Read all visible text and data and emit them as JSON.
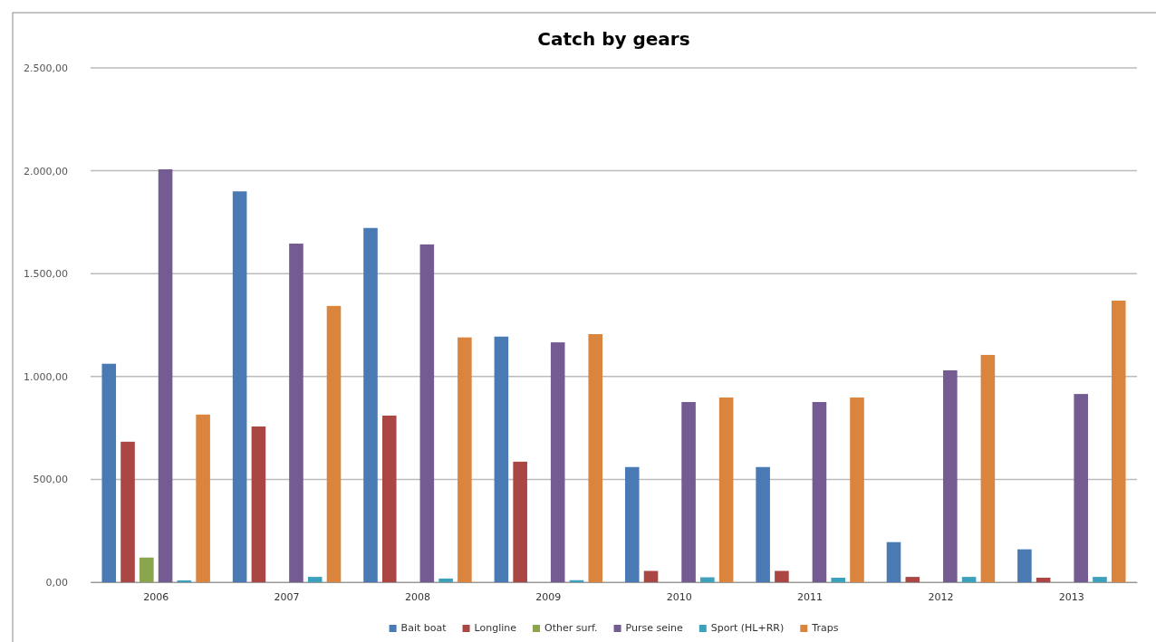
{
  "chart_data": {
    "type": "bar",
    "title": "Catch by gears",
    "categories": [
      "2006",
      "2007",
      "2008",
      "2009",
      "2010",
      "2011",
      "2012",
      "2013"
    ],
    "series": [
      {
        "name": "Bait boat",
        "color": "#4a7ab4",
        "values": [
          1062,
          1900,
          1722,
          1194,
          560,
          560,
          195,
          160
        ]
      },
      {
        "name": "Longline",
        "color": "#aa4744",
        "values": [
          683,
          757,
          810,
          586,
          55,
          55,
          26,
          22
        ]
      },
      {
        "name": "Other surf.",
        "color": "#89a54e",
        "values": [
          120,
          0,
          0,
          0,
          0,
          0,
          0,
          0
        ]
      },
      {
        "name": "Purse seine",
        "color": "#745b92",
        "values": [
          2007,
          1646,
          1642,
          1166,
          876,
          876,
          1030,
          915
        ]
      },
      {
        "name": "Sport (HL+RR)",
        "color": "#3ea1bb",
        "values": [
          9,
          26,
          18,
          10,
          24,
          22,
          26,
          26
        ]
      },
      {
        "name": "Traps",
        "color": "#db843d",
        "values": [
          815,
          1343,
          1190,
          1206,
          898,
          898,
          1105,
          1369
        ]
      }
    ],
    "ylim": [
      0,
      2500
    ],
    "yticks": [
      {
        "value": 0,
        "label": "0,00"
      },
      {
        "value": 500,
        "label": "500,00"
      },
      {
        "value": 1000,
        "label": "1.000,00"
      },
      {
        "value": 1500,
        "label": "1.500,00"
      },
      {
        "value": 2000,
        "label": "2.000,00"
      },
      {
        "value": 2500,
        "label": "2.500,00"
      }
    ],
    "grid": "y",
    "legend": "bottom"
  }
}
